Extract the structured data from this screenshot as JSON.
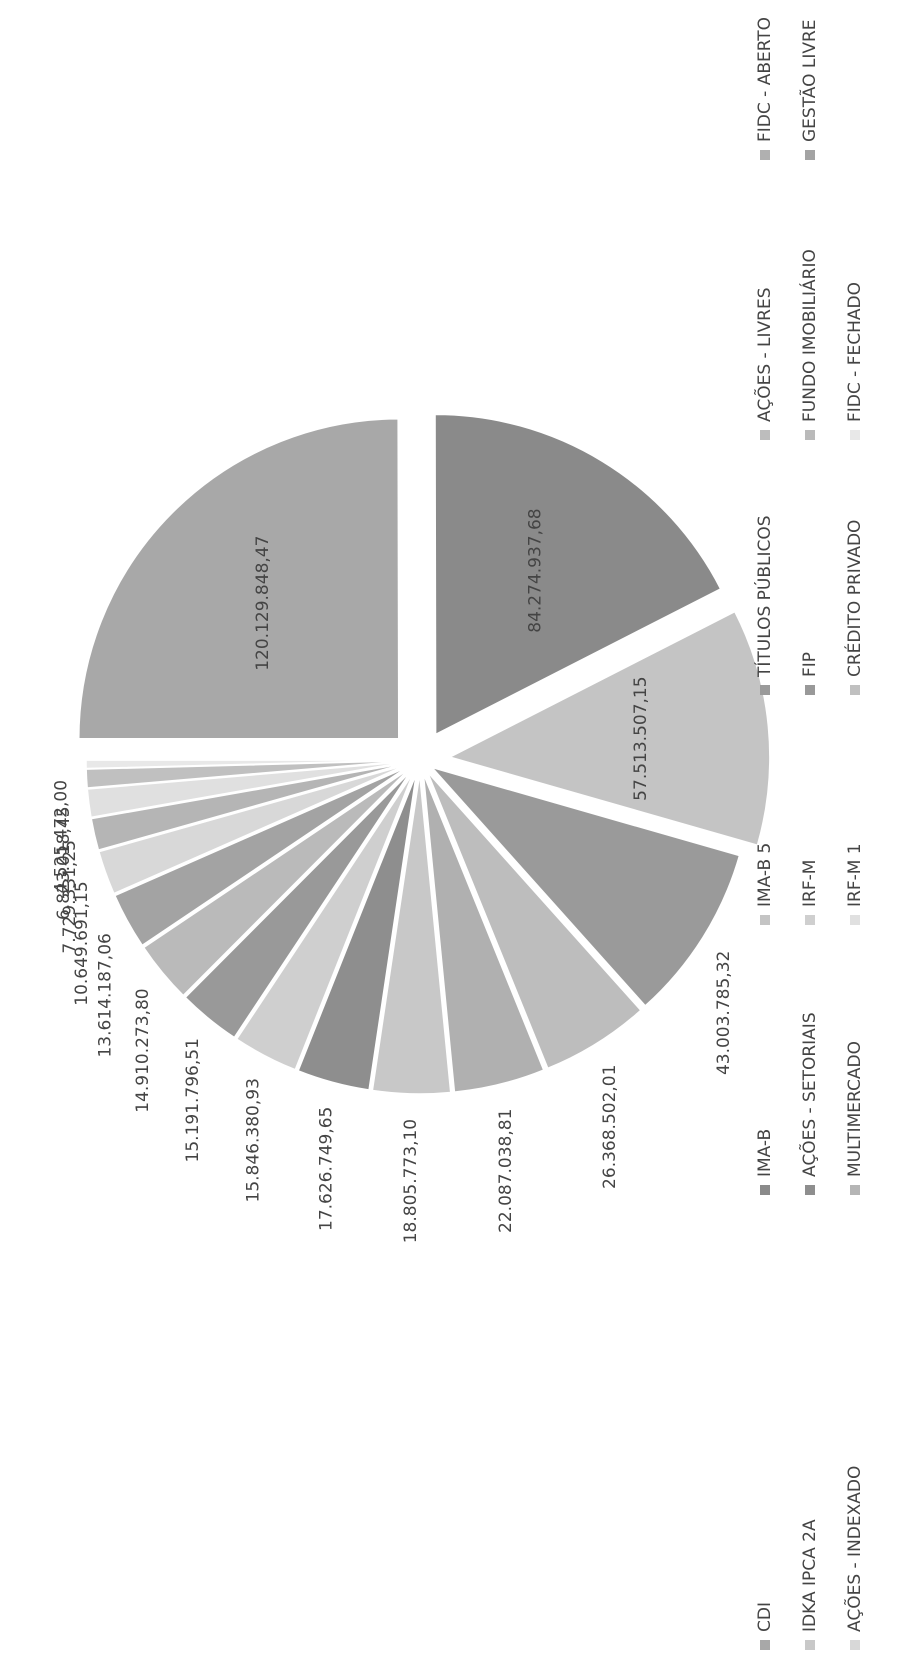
{
  "chart_data": {
    "type": "pie",
    "categories": [
      "CDI",
      "IMA-B",
      "IMA-B 5",
      "TÍTULOS PÚBLICOS",
      "AÇÕES - LIVRES",
      "FIDC - ABERTO",
      "IDKA IPCA 2A",
      "AÇÕES - SETORIAIS",
      "IRF-M",
      "FIP",
      "FUNDO IMOBILIÁRIO",
      "GESTÃO LIVRE",
      "AÇÕES - INDEXADO",
      "MULTIMERCADO",
      "IRF-M 1",
      "CRÉDITO PRIVADO",
      "FIDC - FECHADO"
    ],
    "values": [
      120129848.47,
      84274937.68,
      57513507.15,
      43003785.32,
      26368502.01,
      22087038.81,
      18805773.1,
      17626749.65,
      15846380.93,
      15191796.51,
      14910273.8,
      13614187.06,
      10649691.15,
      7729331.25,
      6823018.45,
      4525472.0,
      2000000
    ],
    "value_labels": [
      "120.129.848,47",
      "84.274.937,68",
      "57.513.507,15",
      "43.003.785,32",
      "26.368.502,01",
      "22.087.038,81",
      "18.805.773,10",
      "17.626.749,65",
      "15.846.380,93",
      "15.191.796,51",
      "14.910.273,80",
      "13.614.187,06",
      "10.649.691,15",
      "7.729.331,25",
      "6.823.018,45",
      "4.525.472,00",
      null
    ],
    "colors": [
      "#a8a8a8",
      "#8a8a8a",
      "#c4c4c4",
      "#9a9a9a",
      "#bdbdbd",
      "#b0b0b0",
      "#c8c8c8",
      "#8e8e8e",
      "#cfcfcf",
      "#999999",
      "#bababa",
      "#a3a3a3",
      "#d8d8d8",
      "#b5b5b5",
      "#e0e0e0",
      "#c0c0c0",
      "#e8e8e8"
    ]
  }
}
